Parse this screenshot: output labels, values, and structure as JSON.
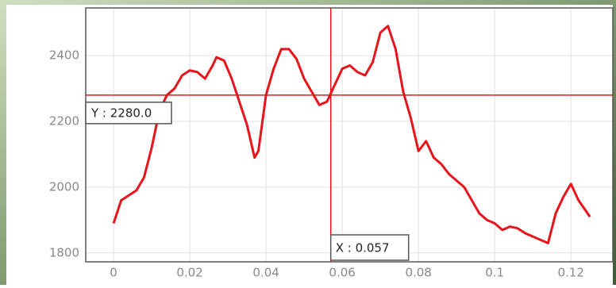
{
  "chart_data": {
    "type": "line",
    "x": [
      0,
      0.002,
      0.004,
      0.006,
      0.008,
      0.01,
      0.012,
      0.014,
      0.016,
      0.018,
      0.02,
      0.022,
      0.024,
      0.026,
      0.027,
      0.029,
      0.031,
      0.033,
      0.035,
      0.037,
      0.038,
      0.04,
      0.042,
      0.044,
      0.046,
      0.048,
      0.05,
      0.052,
      0.054,
      0.056,
      0.058,
      0.06,
      0.062,
      0.064,
      0.066,
      0.068,
      0.07,
      0.072,
      0.074,
      0.076,
      0.078,
      0.08,
      0.082,
      0.084,
      0.086,
      0.088,
      0.09,
      0.092,
      0.094,
      0.096,
      0.098,
      0.1,
      0.102,
      0.104,
      0.106,
      0.108,
      0.11,
      0.112,
      0.114,
      0.116,
      0.118,
      0.12,
      0.122,
      0.125
    ],
    "series": [
      {
        "color": "#e8141c",
        "values": [
          1890,
          1960,
          1975,
          1990,
          2030,
          2120,
          2230,
          2280,
          2300,
          2340,
          2355,
          2350,
          2330,
          2370,
          2395,
          2385,
          2330,
          2260,
          2190,
          2090,
          2110,
          2280,
          2360,
          2420,
          2420,
          2390,
          2330,
          2290,
          2250,
          2260,
          2310,
          2360,
          2370,
          2350,
          2340,
          2380,
          2470,
          2490,
          2420,
          2290,
          2210,
          2110,
          2140,
          2090,
          2070,
          2040,
          2020,
          2000,
          1960,
          1920,
          1900,
          1890,
          1870,
          1880,
          1875,
          1860,
          1850,
          1840,
          1830,
          1920,
          1970,
          2010,
          1960,
          1910
        ]
      }
    ],
    "xlim": [
      -0.0073,
      0.131
    ],
    "ylim": [
      1773,
      2545
    ],
    "xticks": [
      0,
      0.02,
      0.04,
      0.06,
      0.08,
      0.1,
      0.12
    ],
    "yticks": [
      1800,
      2000,
      2200,
      2400
    ],
    "grid": true,
    "crosshair": {
      "x": 0.057,
      "y": 2280,
      "x_label": "X : 0.057",
      "y_label": "Y : 2280.0",
      "color": "#e8141c"
    }
  }
}
